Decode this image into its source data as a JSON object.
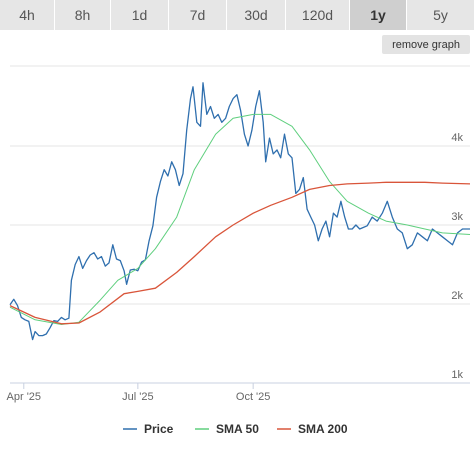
{
  "tabs": [
    {
      "label": "4h",
      "active": false
    },
    {
      "label": "8h",
      "active": false
    },
    {
      "label": "1d",
      "active": false
    },
    {
      "label": "7d",
      "active": false
    },
    {
      "label": "30d",
      "active": false
    },
    {
      "label": "120d",
      "active": false
    },
    {
      "label": "1y",
      "active": true
    },
    {
      "label": "5y",
      "active": false
    }
  ],
  "remove_graph_label": "remove graph",
  "colors": {
    "price": "#2f6fae",
    "sma50": "#5fcf7e",
    "sma200": "#d9553a",
    "grid": "#e6e6e6",
    "axis": "#c8d0e0"
  },
  "chart_data": {
    "type": "line",
    "title": "",
    "xlabel": "",
    "ylabel": "",
    "x_ticks": [
      "Apr '25",
      "Jul '25",
      "Oct '25"
    ],
    "y_ticks": [
      "1k",
      "2k",
      "3k",
      "4k"
    ],
    "ylim": [
      1000,
      4900
    ],
    "xlim": [
      "2025-03-21",
      "2026-03-23"
    ],
    "grid": true,
    "legend_position": "bottom",
    "series": [
      {
        "name": "Price",
        "points": [
          [
            "2025-03-21",
            1990
          ],
          [
            "2025-03-24",
            2060
          ],
          [
            "2025-03-27",
            1980
          ],
          [
            "2025-03-30",
            1830
          ],
          [
            "2025-04-02",
            1800
          ],
          [
            "2025-04-05",
            1780
          ],
          [
            "2025-04-08",
            1550
          ],
          [
            "2025-04-10",
            1650
          ],
          [
            "2025-04-13",
            1600
          ],
          [
            "2025-04-16",
            1600
          ],
          [
            "2025-04-19",
            1620
          ],
          [
            "2025-04-22",
            1700
          ],
          [
            "2025-04-25",
            1790
          ],
          [
            "2025-04-28",
            1780
          ],
          [
            "2025-05-01",
            1830
          ],
          [
            "2025-05-04",
            1800
          ],
          [
            "2025-05-07",
            1820
          ],
          [
            "2025-05-09",
            2300
          ],
          [
            "2025-05-12",
            2500
          ],
          [
            "2025-05-15",
            2600
          ],
          [
            "2025-05-18",
            2450
          ],
          [
            "2025-05-21",
            2550
          ],
          [
            "2025-05-24",
            2620
          ],
          [
            "2025-05-27",
            2650
          ],
          [
            "2025-05-30",
            2570
          ],
          [
            "2025-06-02",
            2600
          ],
          [
            "2025-06-05",
            2480
          ],
          [
            "2025-06-08",
            2520
          ],
          [
            "2025-06-11",
            2750
          ],
          [
            "2025-06-14",
            2570
          ],
          [
            "2025-06-17",
            2550
          ],
          [
            "2025-06-20",
            2420
          ],
          [
            "2025-06-22",
            2250
          ],
          [
            "2025-06-25",
            2430
          ],
          [
            "2025-06-28",
            2440
          ],
          [
            "2025-07-01",
            2420
          ],
          [
            "2025-07-04",
            2530
          ],
          [
            "2025-07-07",
            2560
          ],
          [
            "2025-07-10",
            2800
          ],
          [
            "2025-07-13",
            2990
          ],
          [
            "2025-07-16",
            3350
          ],
          [
            "2025-07-19",
            3550
          ],
          [
            "2025-07-22",
            3700
          ],
          [
            "2025-07-25",
            3620
          ],
          [
            "2025-07-28",
            3800
          ],
          [
            "2025-07-31",
            3700
          ],
          [
            "2025-08-03",
            3500
          ],
          [
            "2025-08-06",
            3650
          ],
          [
            "2025-08-09",
            4200
          ],
          [
            "2025-08-12",
            4600
          ],
          [
            "2025-08-14",
            4750
          ],
          [
            "2025-08-17",
            4300
          ],
          [
            "2025-08-20",
            4250
          ],
          [
            "2025-08-22",
            4800
          ],
          [
            "2025-08-25",
            4400
          ],
          [
            "2025-08-28",
            4500
          ],
          [
            "2025-08-31",
            4350
          ],
          [
            "2025-09-03",
            4400
          ],
          [
            "2025-09-06",
            4300
          ],
          [
            "2025-09-09",
            4350
          ],
          [
            "2025-09-12",
            4500
          ],
          [
            "2025-09-15",
            4600
          ],
          [
            "2025-09-18",
            4650
          ],
          [
            "2025-09-21",
            4450
          ],
          [
            "2025-09-24",
            4150
          ],
          [
            "2025-09-27",
            4000
          ],
          [
            "2025-09-30",
            4200
          ],
          [
            "2025-10-03",
            4500
          ],
          [
            "2025-10-06",
            4700
          ],
          [
            "2025-10-09",
            4300
          ],
          [
            "2025-10-11",
            3800
          ],
          [
            "2025-10-14",
            4100
          ],
          [
            "2025-10-17",
            3900
          ],
          [
            "2025-10-20",
            3950
          ],
          [
            "2025-10-23",
            3850
          ],
          [
            "2025-10-26",
            4150
          ],
          [
            "2025-10-29",
            3900
          ],
          [
            "2025-11-01",
            3850
          ],
          [
            "2025-11-04",
            3400
          ],
          [
            "2025-11-07",
            3450
          ],
          [
            "2025-11-10",
            3600
          ],
          [
            "2025-11-13",
            3200
          ],
          [
            "2025-11-16",
            3100
          ],
          [
            "2025-11-19",
            3000
          ],
          [
            "2025-11-22",
            2800
          ],
          [
            "2025-11-25",
            2950
          ],
          [
            "2025-11-28",
            3050
          ],
          [
            "2025-12-01",
            2850
          ],
          [
            "2025-12-04",
            3150
          ],
          [
            "2025-12-07",
            3100
          ],
          [
            "2025-12-10",
            3300
          ],
          [
            "2025-12-13",
            3100
          ],
          [
            "2025-12-16",
            2950
          ],
          [
            "2025-12-19",
            2950
          ],
          [
            "2025-12-22",
            3000
          ],
          [
            "2025-12-25",
            2950
          ],
          [
            "2025-12-28",
            2970
          ],
          [
            "2025-12-31",
            2990
          ],
          [
            "2026-01-04",
            3100
          ],
          [
            "2026-01-08",
            3050
          ],
          [
            "2026-01-12",
            3150
          ],
          [
            "2026-01-16",
            3300
          ],
          [
            "2026-01-20",
            3100
          ],
          [
            "2026-01-24",
            2950
          ],
          [
            "2026-01-28",
            2900
          ],
          [
            "2026-02-01",
            2700
          ],
          [
            "2026-02-05",
            2750
          ],
          [
            "2026-02-09",
            2900
          ],
          [
            "2026-02-13",
            2850
          ],
          [
            "2026-02-17",
            2800
          ],
          [
            "2026-02-21",
            2950
          ],
          [
            "2026-02-25",
            2900
          ],
          [
            "2026-03-01",
            2850
          ],
          [
            "2026-03-05",
            2800
          ],
          [
            "2026-03-09",
            2750
          ],
          [
            "2026-03-13",
            2900
          ],
          [
            "2026-03-17",
            2950
          ],
          [
            "2026-03-23",
            2950
          ]
        ]
      },
      {
        "name": "SMA 50",
        "points": [
          [
            "2025-03-21",
            1960
          ],
          [
            "2025-04-10",
            1800
          ],
          [
            "2025-05-01",
            1740
          ],
          [
            "2025-05-15",
            1770
          ],
          [
            "2025-06-01",
            2050
          ],
          [
            "2025-06-15",
            2300
          ],
          [
            "2025-07-01",
            2450
          ],
          [
            "2025-07-15",
            2700
          ],
          [
            "2025-08-01",
            3100
          ],
          [
            "2025-08-15",
            3700
          ],
          [
            "2025-09-01",
            4150
          ],
          [
            "2025-09-15",
            4350
          ],
          [
            "2025-10-01",
            4400
          ],
          [
            "2025-10-15",
            4400
          ],
          [
            "2025-11-01",
            4250
          ],
          [
            "2025-11-15",
            3950
          ],
          [
            "2025-12-01",
            3550
          ],
          [
            "2025-12-15",
            3300
          ],
          [
            "2026-01-01",
            3150
          ],
          [
            "2026-01-15",
            3050
          ],
          [
            "2026-02-01",
            3000
          ],
          [
            "2026-02-15",
            2950
          ],
          [
            "2026-03-01",
            2900
          ],
          [
            "2026-03-23",
            2880
          ]
        ]
      },
      {
        "name": "SMA 200",
        "points": [
          [
            "2025-03-21",
            1980
          ],
          [
            "2025-04-10",
            1830
          ],
          [
            "2025-05-01",
            1750
          ],
          [
            "2025-05-15",
            1760
          ],
          [
            "2025-06-01",
            1900
          ],
          [
            "2025-06-20",
            2130
          ],
          [
            "2025-07-01",
            2160
          ],
          [
            "2025-07-15",
            2200
          ],
          [
            "2025-08-01",
            2400
          ],
          [
            "2025-08-15",
            2600
          ],
          [
            "2025-09-01",
            2850
          ],
          [
            "2025-09-15",
            3000
          ],
          [
            "2025-10-01",
            3150
          ],
          [
            "2025-10-15",
            3250
          ],
          [
            "2025-11-01",
            3350
          ],
          [
            "2025-11-15",
            3450
          ],
          [
            "2025-12-01",
            3500
          ],
          [
            "2025-12-15",
            3520
          ],
          [
            "2026-01-01",
            3530
          ],
          [
            "2026-01-15",
            3540
          ],
          [
            "2026-02-01",
            3540
          ],
          [
            "2026-02-15",
            3540
          ],
          [
            "2026-03-01",
            3530
          ],
          [
            "2026-03-23",
            3520
          ]
        ]
      }
    ]
  }
}
